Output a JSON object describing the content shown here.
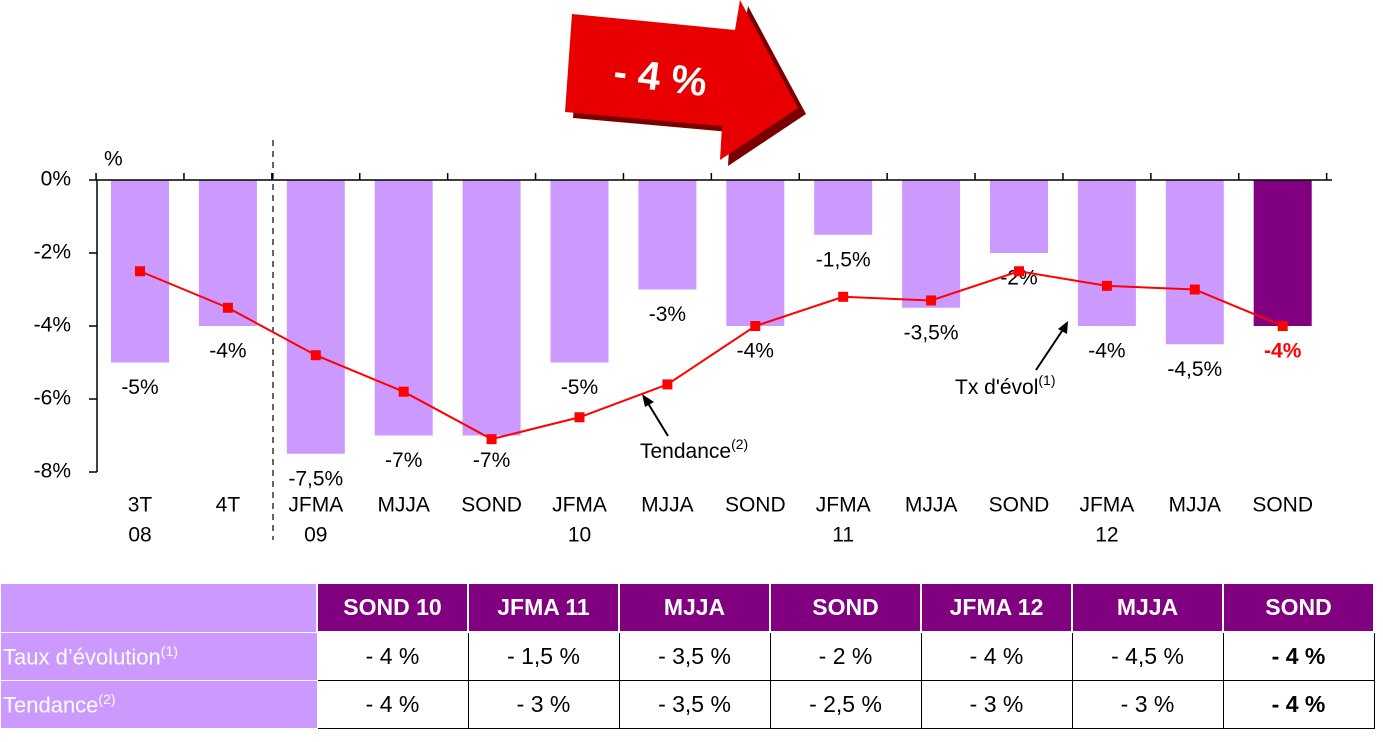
{
  "chart_data": {
    "type": "bar_line",
    "axis_unit": "%",
    "categories": [
      "3T",
      "4T",
      "JFMA",
      "MJJA",
      "SOND",
      "JFMA",
      "MJJA",
      "SOND",
      "JFMA",
      "MJJA",
      "SOND",
      "JFMA",
      "MJJA",
      "SOND"
    ],
    "category_years": [
      "08",
      null,
      "09",
      null,
      null,
      "10",
      null,
      null,
      "11",
      null,
      null,
      "12",
      null,
      null
    ],
    "series": [
      {
        "name": "Tx d'évol",
        "kind": "bar",
        "values": [
          -5,
          -4,
          -7.5,
          -7,
          -7,
          -5,
          -3,
          -4,
          -1.5,
          -3.5,
          -2,
          -4,
          -4.5,
          -4
        ],
        "value_labels": [
          "-5%",
          "-4%",
          "-7,5%",
          "-7%",
          "-7%",
          "-5%",
          "-3%",
          "-4%",
          "-1,5%",
          "-3,5%",
          "-2%",
          "-4%",
          "-4,5%",
          "-4%"
        ],
        "colors": [
          "#cc99ff",
          "#cc99ff",
          "#cc99ff",
          "#cc99ff",
          "#cc99ff",
          "#cc99ff",
          "#cc99ff",
          "#cc99ff",
          "#cc99ff",
          "#cc99ff",
          "#cc99ff",
          "#cc99ff",
          "#cc99ff",
          "#800080"
        ],
        "label_colors": [
          "#000",
          "#000",
          "#000",
          "#000",
          "#000",
          "#000",
          "#000",
          "#000",
          "#000",
          "#000",
          "#000",
          "#000",
          "#000",
          "#ff0000"
        ]
      },
      {
        "name": "Tendance",
        "kind": "line",
        "color": "#ff0000",
        "values": [
          -2.5,
          -3.5,
          -4.8,
          -5.8,
          -7.1,
          -6.5,
          -5.6,
          -4,
          -3.2,
          -3.3,
          -2.5,
          -2.9,
          -3,
          -4
        ]
      }
    ],
    "ylim": [
      -8,
      0
    ],
    "yticks": [
      {
        "value": 0,
        "label": "0%"
      },
      {
        "value": -2,
        "label": "-2%"
      },
      {
        "value": -4,
        "label": "-4%"
      },
      {
        "value": -6,
        "label": "-6%"
      },
      {
        "value": -8,
        "label": "-8%"
      }
    ],
    "annotations": [
      {
        "text": "Tendance",
        "sup": "(2)"
      },
      {
        "text": "Tx d'évol",
        "sup": "(1)"
      },
      {
        "text": "- 4 %"
      }
    ]
  },
  "table": {
    "header": [
      "SOND 10",
      "JFMA 11",
      "MJJA",
      "SOND",
      "JFMA 12",
      "MJJA",
      "SOND"
    ],
    "rows": [
      {
        "label": "Taux d’évolution",
        "sup": "(1)",
        "cells": [
          "- 4 %",
          "- 1,5 %",
          "- 3,5 %",
          "- 2 %",
          "- 4 %",
          "- 4,5 %",
          "- 4 %"
        ]
      },
      {
        "label": "Tendance",
        "sup": "(2)",
        "cells": [
          "- 4 %",
          "- 3 %",
          "- 3,5 %",
          "- 2,5 %",
          "- 3 %",
          "- 3 %",
          "- 4 %"
        ]
      }
    ]
  }
}
